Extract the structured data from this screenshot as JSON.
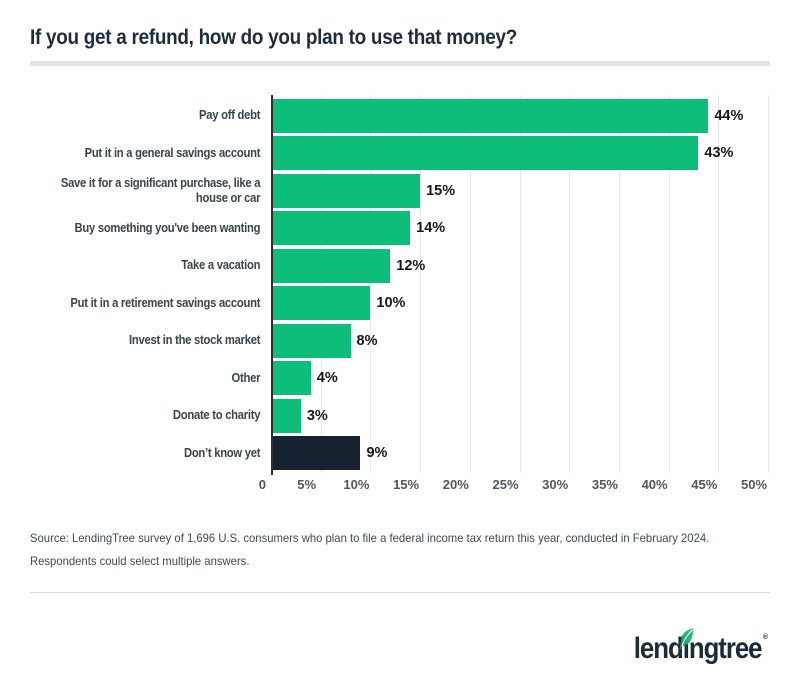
{
  "chart_data": {
    "type": "bar",
    "orientation": "horizontal",
    "title": "If you get a refund, how do you plan to use that money?",
    "categories": [
      "Pay off debt",
      "Put it in a general savings account",
      "Save it for a significant purchase, like a\nhouse or car",
      "Buy something you've been wanting",
      "Take a vacation",
      "Put it in a retirement savings account",
      "Invest in the stock market",
      "Other",
      "Donate to charity",
      "Don’t know yet"
    ],
    "values": [
      44,
      43,
      15,
      14,
      12,
      10,
      8,
      4,
      3,
      9
    ],
    "value_labels": [
      "44%",
      "43%",
      "15%",
      "14%",
      "12%",
      "10%",
      "8%",
      "4%",
      "3%",
      "9%"
    ],
    "xlim": [
      0,
      50
    ],
    "x_ticks": [
      "0",
      "5%",
      "10%",
      "15%",
      "20%",
      "25%",
      "30%",
      "35%",
      "40%",
      "45%",
      "50%"
    ],
    "grid": true,
    "legend": "none",
    "bar_color": "#0dbe78",
    "highlight_color": "#16222f",
    "highlight_index": 9
  },
  "source": {
    "line1": "Source: LendingTree survey of 1,696 U.S. consumers who plan to file a federal income tax return this year, conducted in February 2024.",
    "line2": "Respondents could select multiple answers."
  },
  "footer": {
    "logo_pre": "lend",
    "logo_i": "ı",
    "logo_post": "ngtree",
    "trademark": "®",
    "leaf_color_dark": "#169a60",
    "leaf_color_light": "#2fd287"
  }
}
